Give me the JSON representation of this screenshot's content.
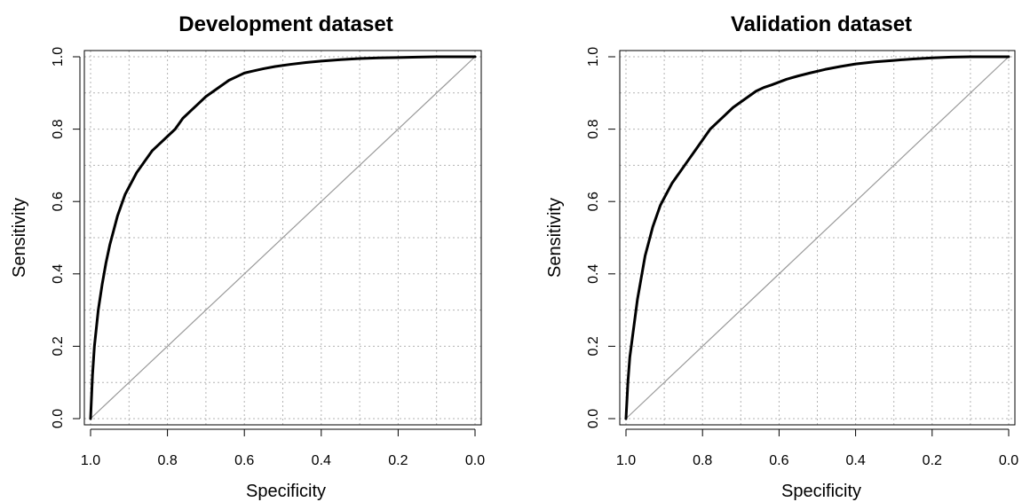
{
  "chart_data": [
    {
      "type": "line",
      "title": "Development dataset",
      "xlabel": "Specificity",
      "ylabel": "Sensitivity",
      "xlim": [
        1.0,
        0.0
      ],
      "ylim": [
        0.0,
        1.0
      ],
      "x_reversed": true,
      "grid": true,
      "grid_style": "dotted",
      "xticks": [
        "1.0",
        "0.8",
        "0.6",
        "0.4",
        "0.2",
        "0.0"
      ],
      "yticks": [
        "0.0",
        "0.2",
        "0.4",
        "0.6",
        "0.8",
        "1.0"
      ],
      "series": [
        {
          "x": [
            1.0,
            0.995,
            0.99,
            0.98,
            0.97,
            0.96,
            0.95,
            0.94,
            0.93,
            0.92,
            0.91,
            0.9,
            0.88,
            0.86,
            0.84,
            0.82,
            0.8,
            0.78,
            0.76,
            0.74,
            0.72,
            0.7,
            0.68,
            0.66,
            0.64,
            0.62,
            0.6,
            0.58,
            0.55,
            0.52,
            0.48,
            0.44,
            0.4,
            0.35,
            0.3,
            0.25,
            0.2,
            0.15,
            0.1,
            0.05,
            0.0
          ],
          "y": [
            0.0,
            0.12,
            0.2,
            0.3,
            0.37,
            0.43,
            0.48,
            0.52,
            0.56,
            0.59,
            0.62,
            0.64,
            0.68,
            0.71,
            0.74,
            0.76,
            0.78,
            0.8,
            0.83,
            0.85,
            0.87,
            0.89,
            0.905,
            0.92,
            0.935,
            0.945,
            0.955,
            0.96,
            0.967,
            0.973,
            0.979,
            0.984,
            0.988,
            0.992,
            0.995,
            0.997,
            0.998,
            0.999,
            1.0,
            1.0,
            1.0
          ],
          "color": "#000000",
          "stroke": "thick"
        }
      ],
      "reference_line": {
        "from": [
          1.0,
          0.0
        ],
        "to": [
          0.0,
          1.0
        ],
        "color": "#999999"
      }
    },
    {
      "type": "line",
      "title": "Validation dataset",
      "xlabel": "Specificity",
      "ylabel": "Sensitivity",
      "xlim": [
        1.0,
        0.0
      ],
      "ylim": [
        0.0,
        1.0
      ],
      "x_reversed": true,
      "grid": true,
      "grid_style": "dotted",
      "xticks": [
        "1.0",
        "0.8",
        "0.6",
        "0.4",
        "0.2",
        "0.0"
      ],
      "yticks": [
        "0.0",
        "0.2",
        "0.4",
        "0.6",
        "0.8",
        "1.0"
      ],
      "series": [
        {
          "x": [
            1.0,
            0.995,
            0.99,
            0.98,
            0.97,
            0.96,
            0.95,
            0.94,
            0.93,
            0.92,
            0.91,
            0.9,
            0.88,
            0.86,
            0.84,
            0.82,
            0.8,
            0.78,
            0.76,
            0.74,
            0.72,
            0.7,
            0.68,
            0.66,
            0.64,
            0.62,
            0.6,
            0.58,
            0.55,
            0.52,
            0.48,
            0.44,
            0.4,
            0.35,
            0.3,
            0.25,
            0.2,
            0.15,
            0.1,
            0.05,
            0.0
          ],
          "y": [
            0.0,
            0.1,
            0.17,
            0.25,
            0.33,
            0.39,
            0.45,
            0.49,
            0.53,
            0.56,
            0.59,
            0.61,
            0.65,
            0.68,
            0.71,
            0.74,
            0.77,
            0.8,
            0.82,
            0.84,
            0.86,
            0.875,
            0.89,
            0.905,
            0.915,
            0.922,
            0.93,
            0.938,
            0.947,
            0.955,
            0.965,
            0.973,
            0.98,
            0.986,
            0.99,
            0.994,
            0.997,
            0.999,
            1.0,
            1.0,
            1.0
          ],
          "color": "#000000",
          "stroke": "thick"
        }
      ],
      "reference_line": {
        "from": [
          1.0,
          0.0
        ],
        "to": [
          0.0,
          1.0
        ],
        "color": "#999999"
      }
    }
  ]
}
